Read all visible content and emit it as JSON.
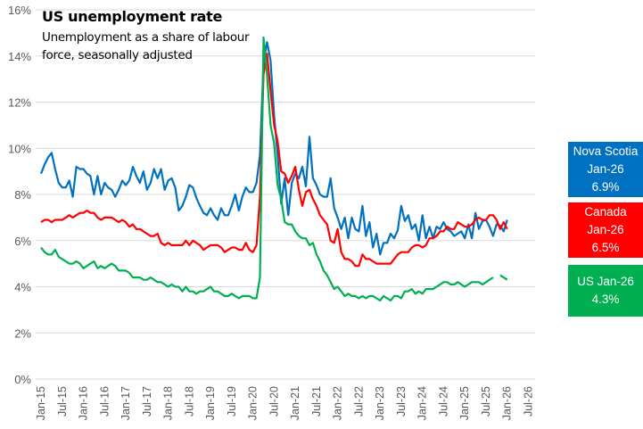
{
  "chart_data": {
    "type": "line",
    "title": "US unemployment rate",
    "subtitle": "Unemployment as a share of labour force, seasonally adjusted",
    "xlabel": "",
    "ylabel": "",
    "x_start": "Jan-15",
    "x_frequency": "monthly",
    "x_tick_labels": [
      "Jan-15",
      "Jul-15",
      "Jan-16",
      "Jul-16",
      "Jan-17",
      "Jul-17",
      "Jan-18",
      "Jul-18",
      "Jan-19",
      "Jul-19",
      "Jan-20",
      "Jul-20",
      "Jan-21",
      "Jul-21",
      "Jan-22",
      "Jul-22",
      "Jan-23",
      "Jul-23",
      "Jan-24",
      "Jul-24",
      "Jan-25",
      "Jul-25",
      "Jan-26",
      "Jul-26"
    ],
    "y_tick_labels": [
      "0%",
      "2%",
      "4%",
      "6%",
      "8%",
      "10%",
      "12%",
      "14%",
      "16%"
    ],
    "ylim": [
      0,
      16
    ],
    "grid": true,
    "legend_placement": "right",
    "series": [
      {
        "name": "Nova Scotia",
        "color": "#0070C0",
        "values": [
          8.9,
          9.3,
          9.6,
          9.8,
          9.1,
          8.5,
          8.3,
          8.3,
          8.6,
          7.9,
          9.2,
          9.1,
          9.1,
          8.9,
          8.8,
          8.0,
          8.8,
          8.0,
          8.5,
          8.3,
          8.2,
          7.9,
          8.2,
          8.6,
          8.4,
          8.6,
          9.2,
          8.8,
          8.5,
          9.0,
          8.2,
          8.5,
          9.1,
          8.7,
          9.1,
          8.2,
          8.6,
          8.7,
          8.3,
          7.3,
          7.5,
          7.9,
          8.4,
          8.3,
          7.85,
          7.5,
          7.2,
          7.1,
          7.4,
          7.1,
          6.9,
          7.4,
          7.1,
          7.1,
          7.5,
          8.0,
          7.3,
          7.9,
          8.3,
          8.1,
          8.1,
          8.5,
          9.7,
          13.7,
          14.6,
          13.8,
          11.4,
          9.7,
          7.6,
          8.7,
          7.1,
          8.5,
          8.9,
          8.7,
          9.2,
          8.35,
          10.5,
          8.7,
          8.4,
          8.0,
          7.9,
          7.9,
          8.7,
          7.4,
          7.0,
          6.5,
          7.0,
          6.1,
          7.0,
          6.5,
          6.4,
          7.5,
          6.2,
          6.8,
          5.7,
          6.3,
          5.4,
          5.9,
          5.9,
          6.3,
          6.1,
          6.45,
          7.5,
          6.85,
          7.1,
          6.5,
          6.7,
          6.0,
          7.1,
          6.1,
          6.6,
          6.1,
          6.6,
          6.5,
          6.8,
          6.5,
          6.4,
          6.2,
          6.3,
          6.4,
          6.1,
          6.7,
          6.1,
          7.2,
          6.5,
          6.85,
          6.9,
          6.6,
          6.2,
          6.7,
          6.65,
          6.4,
          6.9
        ]
      },
      {
        "name": "Canada",
        "color": "#FF0000",
        "values": [
          6.8,
          6.9,
          6.9,
          6.8,
          6.9,
          6.9,
          6.9,
          7.0,
          7.1,
          7.0,
          7.1,
          7.2,
          7.2,
          7.3,
          7.2,
          7.2,
          7.0,
          6.9,
          7.0,
          7.0,
          7.0,
          6.9,
          6.8,
          6.9,
          6.8,
          6.6,
          6.7,
          6.5,
          6.5,
          6.4,
          6.3,
          6.2,
          6.2,
          6.3,
          5.9,
          5.8,
          5.9,
          5.8,
          5.8,
          5.8,
          5.8,
          6.0,
          5.8,
          6.0,
          5.9,
          5.8,
          5.6,
          5.7,
          5.8,
          5.8,
          5.8,
          5.7,
          5.5,
          5.6,
          5.7,
          5.7,
          5.6,
          5.6,
          5.9,
          5.6,
          5.5,
          5.8,
          7.9,
          13.2,
          14.1,
          12.5,
          11.0,
          10.3,
          9.0,
          8.9,
          8.5,
          8.8,
          9.2,
          8.2,
          7.5,
          8.1,
          8.2,
          7.8,
          7.5,
          7.1,
          6.9,
          6.7,
          6.0,
          5.9,
          6.5,
          5.5,
          5.2,
          5.2,
          5.1,
          4.9,
          4.9,
          5.4,
          5.2,
          5.2,
          5.1,
          5.0,
          5.0,
          5.0,
          5.0,
          5.0,
          5.2,
          5.4,
          5.5,
          5.5,
          5.5,
          5.7,
          5.8,
          5.8,
          5.7,
          5.8,
          6.1,
          6.1,
          6.2,
          6.4,
          6.4,
          6.6,
          6.5,
          6.5,
          6.8,
          6.7,
          6.6,
          6.6,
          6.7,
          6.9,
          7.0,
          6.9,
          6.9,
          7.1,
          7.1,
          6.9,
          6.5,
          6.8,
          6.5
        ]
      },
      {
        "name": "US",
        "color": "#00B050",
        "values": [
          5.7,
          5.5,
          5.4,
          5.4,
          5.6,
          5.3,
          5.2,
          5.1,
          5.0,
          5.0,
          5.1,
          5.0,
          4.8,
          4.9,
          5.0,
          5.1,
          4.8,
          4.9,
          4.8,
          4.9,
          5.0,
          4.9,
          4.7,
          4.7,
          4.7,
          4.6,
          4.4,
          4.4,
          4.4,
          4.3,
          4.3,
          4.4,
          4.3,
          4.2,
          4.2,
          4.1,
          4.0,
          4.1,
          4.0,
          4.0,
          3.8,
          4.0,
          3.8,
          3.8,
          3.7,
          3.8,
          3.8,
          3.9,
          4.0,
          3.8,
          3.8,
          3.7,
          3.6,
          3.6,
          3.7,
          3.6,
          3.5,
          3.6,
          3.6,
          3.6,
          3.5,
          3.5,
          4.4,
          14.8,
          13.2,
          11.0,
          10.2,
          8.4,
          7.8,
          6.8,
          6.7,
          6.7,
          6.4,
          6.2,
          6.1,
          6.1,
          5.8,
          5.9,
          5.4,
          5.1,
          4.7,
          4.5,
          4.2,
          3.9,
          4.0,
          3.8,
          3.6,
          3.7,
          3.6,
          3.6,
          3.5,
          3.6,
          3.5,
          3.6,
          3.6,
          3.5,
          3.4,
          3.6,
          3.5,
          3.4,
          3.6,
          3.6,
          3.5,
          3.8,
          3.8,
          3.9,
          3.7,
          3.8,
          3.7,
          3.9,
          3.9,
          3.9,
          4.0,
          4.1,
          4.2,
          4.2,
          4.1,
          4.1,
          4.2,
          4.1,
          4.0,
          4.1,
          4.2,
          4.2,
          4.2,
          4.1,
          4.2,
          4.3,
          4.4,
          null,
          4.5,
          4.4,
          4.3
        ]
      }
    ],
    "annotations": [
      {
        "series": "Nova Scotia",
        "lines": [
          "Nova Scotia",
          "Jan-26",
          "6.9%"
        ]
      },
      {
        "series": "Canada",
        "lines": [
          "Canada",
          "Jan-26",
          "6.5%"
        ]
      },
      {
        "series": "US",
        "lines": [
          "US Jan-26",
          "4.3%"
        ]
      }
    ]
  }
}
